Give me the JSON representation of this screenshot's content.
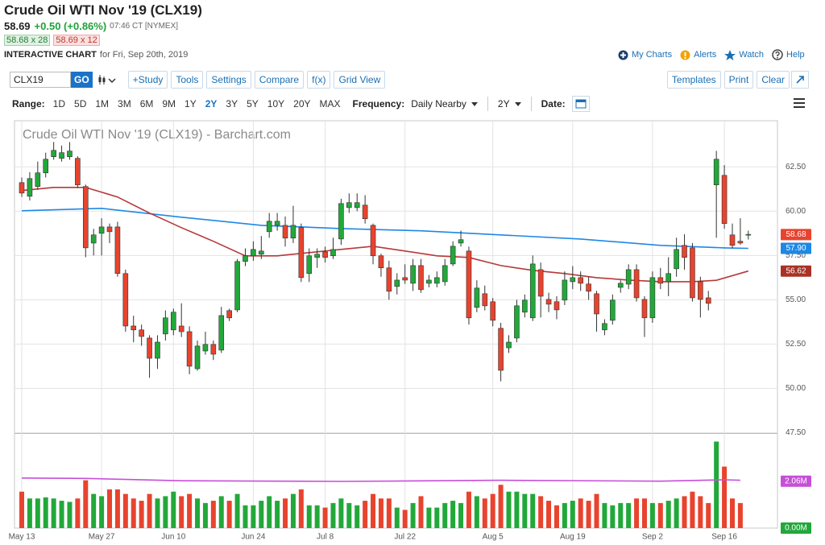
{
  "header": {
    "title": "Crude Oil WTI Nov '19 (CLX19)",
    "last": 58.69,
    "change": "+0.50 (+0.86%)",
    "time": "07:46 CT [NYMEX]",
    "bid": "58.68 x 28",
    "ask": "58.69 x 12",
    "chart_label": "INTERACTIVE CHART",
    "chart_date": "for Fri, Sep 20th, 2019",
    "links": [
      "My Charts",
      "Alerts",
      "Watch",
      "Help"
    ]
  },
  "toolbar": {
    "symbol": "CLX19",
    "go": "GO",
    "left_buttons": [
      "+Study",
      "Tools",
      "Settings",
      "Compare",
      "f(x)",
      "Grid View"
    ],
    "right_buttons": [
      "Templates",
      "Print",
      "Clear"
    ]
  },
  "range_bar": {
    "range_label": "Range:",
    "ranges": [
      "1D",
      "5D",
      "1M",
      "3M",
      "6M",
      "9M",
      "1Y",
      "2Y",
      "3Y",
      "5Y",
      "10Y",
      "20Y",
      "MAX"
    ],
    "active_index": 7,
    "frequency_label": "Frequency:",
    "frequency": "Daily Nearby",
    "period": "2Y",
    "date_label": "Date:"
  },
  "chart_data": {
    "type": "candlestick",
    "title": "Crude Oil WTI Nov '19 (CLX19) - Barchart.com",
    "categories": [
      "May 13",
      null,
      null,
      null,
      null,
      null,
      null,
      null,
      null,
      null,
      "May 27",
      null,
      null,
      null,
      null,
      null,
      null,
      null,
      null,
      "Jun 10",
      null,
      null,
      null,
      null,
      null,
      null,
      null,
      null,
      null,
      "Jun 24",
      null,
      null,
      null,
      null,
      null,
      null,
      null,
      null,
      "Jul 8",
      null,
      null,
      null,
      null,
      null,
      null,
      null,
      null,
      null,
      "Jul 22",
      null,
      null,
      null,
      null,
      null,
      null,
      null,
      null,
      null,
      null,
      "Aug 5",
      null,
      null,
      null,
      null,
      null,
      null,
      null,
      null,
      null,
      "Aug 19",
      null,
      null,
      null,
      null,
      null,
      null,
      null,
      null,
      null,
      "Sep 2",
      null,
      null,
      null,
      null,
      null,
      null,
      null,
      null,
      "Sep 16",
      null,
      null,
      null
    ],
    "open": [
      61.61,
      60.84,
      61.39,
      62.16,
      63.07,
      62.98,
      63.07,
      62.98,
      61.39,
      58.2,
      58.75,
      59.11,
      59.11,
      56.48,
      53.52,
      53.3,
      52.84,
      51.7,
      53.07,
      53.3,
      53.52,
      53.2,
      51.11,
      52.11,
      52.48,
      52.16,
      54.39,
      54.43,
      57.16,
      57.48,
      57.57,
      58.84,
      59.2,
      59.2,
      58.48,
      59.07,
      56.48,
      57.39,
      57.7,
      57.48,
      58.43,
      60.2,
      60.2,
      60.34,
      59.2,
      57.48,
      56.8,
      55.75,
      56.25,
      55.93,
      56.93,
      55.93,
      55.93,
      56.02,
      57.02,
      58.2,
      57.75,
      54.57,
      55.34,
      54.89,
      53.39,
      52.29,
      52.84,
      54.3,
      53.98,
      56.7,
      55.02,
      54.89,
      54.98,
      56.02,
      56.25,
      55.89,
      55.34,
      53.3,
      53.84,
      55.7,
      55.88,
      56.7,
      55.02,
      53.98,
      56.25,
      56.02,
      56.75,
      58.07,
      57.93,
      56.02,
      55.11,
      61.48,
      62.02,
      58.66,
      58.3,
      58.66
    ],
    "high": [
      61.9,
      62.2,
      62.8,
      63.3,
      63.9,
      63.7,
      63.9,
      63.1,
      61.5,
      59.0,
      59.6,
      59.3,
      59.4,
      56.7,
      54.1,
      53.6,
      53.0,
      53.0,
      54.4,
      54.5,
      54.8,
      53.5,
      52.7,
      53.2,
      52.7,
      54.6,
      54.5,
      57.3,
      57.9,
      58.3,
      58.6,
      59.9,
      59.9,
      59.7,
      60.3,
      59.3,
      57.9,
      57.9,
      58.0,
      58.5,
      60.7,
      61.0,
      61.0,
      60.9,
      59.3,
      57.6,
      57.2,
      56.5,
      57.0,
      57.3,
      57.3,
      56.4,
      56.6,
      57.3,
      58.3,
      58.9,
      58.0,
      56.1,
      55.8,
      55.1,
      53.7,
      53.0,
      55.0,
      55.3,
      57.5,
      57.1,
      55.4,
      55.2,
      56.6,
      56.9,
      56.6,
      56.3,
      55.5,
      53.9,
      55.3,
      56.1,
      57.0,
      57.0,
      55.2,
      56.6,
      56.8,
      57.4,
      58.5,
      58.7,
      58.2,
      56.3,
      55.5,
      63.4,
      62.6,
      59.3,
      59.6,
      58.9
    ],
    "low": [
      60.8,
      60.6,
      61.2,
      61.9,
      62.9,
      62.8,
      62.9,
      61.3,
      57.4,
      57.5,
      57.5,
      58.2,
      56.3,
      53.2,
      52.6,
      52.4,
      50.6,
      51.1,
      52.7,
      53.0,
      52.9,
      50.8,
      51.0,
      51.9,
      51.6,
      52.0,
      53.8,
      54.3,
      56.9,
      57.2,
      57.3,
      58.5,
      58.9,
      58.0,
      58.2,
      56.0,
      56.0,
      56.8,
      57.1,
      57.3,
      58.1,
      59.9,
      60.0,
      59.3,
      57.0,
      56.3,
      55.0,
      55.3,
      55.9,
      55.5,
      55.4,
      55.7,
      55.7,
      55.8,
      56.9,
      58.0,
      53.6,
      54.3,
      54.4,
      53.5,
      50.4,
      52.0,
      52.6,
      54.0,
      53.8,
      54.0,
      54.3,
      53.9,
      54.7,
      55.6,
      55.5,
      55.0,
      53.2,
      53.0,
      53.6,
      55.4,
      55.6,
      54.9,
      52.9,
      53.7,
      55.6,
      55.2,
      56.3,
      56.7,
      54.9,
      54.0,
      54.4,
      58.5,
      59.0,
      57.9,
      58.1,
      58.4
    ],
    "close": [
      61.02,
      61.84,
      62.16,
      62.93,
      63.43,
      63.3,
      63.39,
      61.48,
      57.93,
      58.66,
      59.11,
      58.84,
      56.48,
      53.52,
      53.3,
      52.93,
      51.7,
      52.61,
      53.98,
      54.3,
      53.2,
      51.25,
      52.39,
      52.48,
      51.93,
      54.11,
      53.98,
      57.16,
      57.48,
      57.84,
      57.75,
      59.43,
      59.43,
      58.48,
      59.2,
      56.25,
      57.48,
      57.57,
      57.39,
      57.84,
      60.43,
      60.48,
      60.48,
      59.57,
      57.48,
      56.8,
      55.48,
      56.11,
      56.11,
      56.93,
      55.57,
      56.11,
      56.25,
      56.93,
      58.02,
      58.39,
      53.98,
      55.66,
      54.66,
      53.84,
      51.02,
      52.61,
      54.66,
      54.98,
      57.02,
      55.2,
      54.75,
      54.43,
      56.11,
      56.25,
      55.93,
      55.48,
      54.2,
      53.66,
      54.98,
      55.93,
      56.7,
      55.11,
      53.98,
      56.25,
      55.93,
      56.48,
      57.84,
      57.39,
      55.11,
      55.02,
      54.8,
      62.93,
      59.3,
      58.07,
      58.2,
      58.69
    ],
    "volume": [
      1.6,
      1.3,
      1.3,
      1.35,
      1.3,
      1.2,
      1.15,
      1.3,
      2.1,
      1.5,
      1.4,
      1.7,
      1.7,
      1.5,
      1.3,
      1.2,
      1.5,
      1.3,
      1.4,
      1.6,
      1.4,
      1.5,
      1.3,
      1.1,
      1.2,
      1.4,
      1.2,
      1.5,
      1.0,
      1.0,
      1.2,
      1.4,
      1.2,
      1.3,
      1.5,
      1.7,
      1.0,
      1.0,
      0.9,
      1.1,
      1.3,
      1.1,
      1.0,
      1.2,
      1.5,
      1.3,
      1.3,
      0.9,
      0.8,
      1.1,
      1.4,
      0.9,
      0.9,
      1.1,
      1.2,
      1.1,
      1.6,
      1.4,
      1.3,
      1.5,
      1.9,
      1.6,
      1.6,
      1.5,
      1.5,
      1.4,
      1.2,
      1.0,
      1.1,
      1.2,
      1.3,
      1.2,
      1.5,
      1.1,
      1.0,
      1.1,
      1.1,
      1.3,
      1.3,
      1.1,
      1.1,
      1.2,
      1.3,
      1.4,
      1.6,
      1.4,
      1.1,
      3.8,
      2.7,
      1.3,
      1.1,
      null
    ],
    "up_color": "#22a83a",
    "down_color": "#e8432e",
    "ylim": [
      47.5,
      65.1
    ],
    "yticks": [
      {
        "value": 47.5,
        "label": "47.50"
      },
      {
        "value": 50,
        "label": "50.00"
      },
      {
        "value": 52.5,
        "label": "52.50"
      },
      {
        "value": 55,
        "label": "55.00"
      },
      {
        "value": 57.5,
        "label": "57.50"
      },
      {
        "value": 60,
        "label": "60.00"
      },
      {
        "value": 62.5,
        "label": "62.50"
      }
    ],
    "grid": true,
    "price_markers": [
      {
        "value": 58.68,
        "label": "58.68",
        "color": "#e8432e"
      },
      {
        "value": 57.9,
        "label": "57.90",
        "color": "#1e88e5"
      },
      {
        "value": 56.62,
        "label": "56.62",
        "color": "#a93226"
      }
    ],
    "volume_ylim": [
      0,
      4.1
    ],
    "volume_markers": [
      {
        "value": 2.06,
        "label": "2.06M",
        "color": "#c64fd8"
      },
      {
        "value": 0,
        "label": "0.00M",
        "color": "#22a83a"
      }
    ],
    "moving_averages": [
      {
        "color": "#1e88e5",
        "x": [
          0,
          10,
          20,
          30,
          40,
          50,
          60,
          70,
          80,
          88,
          91
        ],
        "values": [
          60.02,
          60.16,
          59.66,
          59.2,
          59.02,
          58.89,
          58.66,
          58.43,
          58.07,
          57.93,
          57.9
        ]
      },
      {
        "color": "#b5393a",
        "x": [
          0,
          4,
          8,
          12,
          16,
          20,
          24,
          28,
          32,
          36,
          40,
          44,
          48,
          52,
          56,
          60,
          64,
          68,
          72,
          76,
          80,
          84,
          87,
          91
        ],
        "values": [
          61.16,
          61.34,
          61.34,
          60.8,
          59.89,
          59.07,
          58.3,
          57.48,
          57.48,
          57.66,
          57.84,
          58.02,
          57.75,
          57.48,
          57.39,
          56.93,
          56.66,
          56.48,
          56.25,
          56.11,
          56.02,
          56.02,
          56.1,
          56.62
        ]
      }
    ],
    "volume_average": {
      "color": "#c64fd8",
      "x": [
        0,
        8,
        20,
        40,
        60,
        80,
        88,
        90
      ],
      "values": [
        2.2,
        2.18,
        2.08,
        2.05,
        2.1,
        2.06,
        2.12,
        2.1
      ]
    }
  }
}
